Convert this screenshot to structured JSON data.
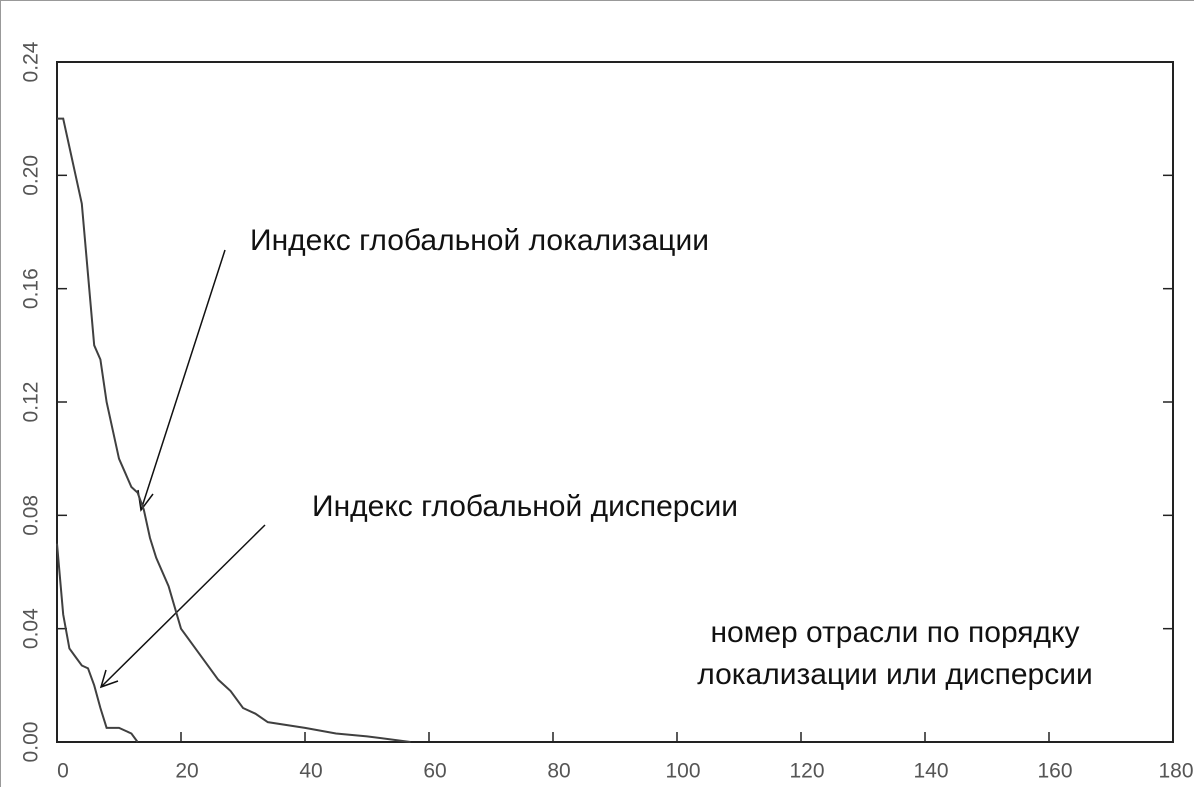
{
  "chart_data": {
    "type": "line",
    "series": [
      {
        "color": "#404040",
        "x": [
          0,
          1,
          2,
          3,
          4,
          5,
          6,
          7,
          8,
          9,
          10,
          11,
          12,
          13,
          14,
          15,
          16,
          18,
          20,
          22,
          24,
          26,
          28,
          30,
          32,
          34,
          40,
          45,
          50,
          57
        ],
        "values": [
          0.22,
          0.22,
          0.21,
          0.2,
          0.19,
          0.165,
          0.14,
          0.135,
          0.12,
          0.11,
          0.1,
          0.095,
          0.09,
          0.088,
          0.082,
          0.072,
          0.065,
          0.055,
          0.04,
          0.034,
          0.028,
          0.022,
          0.018,
          0.012,
          0.01,
          0.007,
          0.005,
          0.003,
          0.002,
          0
        ]
      },
      {
        "color": "#404040",
        "x": [
          0,
          1,
          2,
          3,
          4,
          5,
          6,
          7,
          8,
          10,
          12,
          13
        ],
        "values": [
          0.07,
          0.045,
          0.033,
          0.03,
          0.027,
          0.026,
          0.02,
          0.012,
          0.005,
          0.005,
          0.003,
          0
        ]
      }
    ],
    "annotations": [
      "Индекс глобальной локализации",
      "Индекс глобальной дисперсии"
    ],
    "xlabel": [
      "номер отрасли по порядку",
      "локализации или дисперсии"
    ],
    "xlim": [
      0,
      180
    ],
    "xticks": [
      0,
      20,
      40,
      60,
      80,
      100,
      120,
      140,
      160,
      180
    ],
    "ylim": [
      0,
      0.24
    ],
    "yticks": [
      {
        "value": 0,
        "label": "0.00"
      },
      0.04,
      0.08,
      0.12,
      0.16,
      {
        "value": 0.2,
        "label": "0.20"
      },
      0.24
    ]
  }
}
